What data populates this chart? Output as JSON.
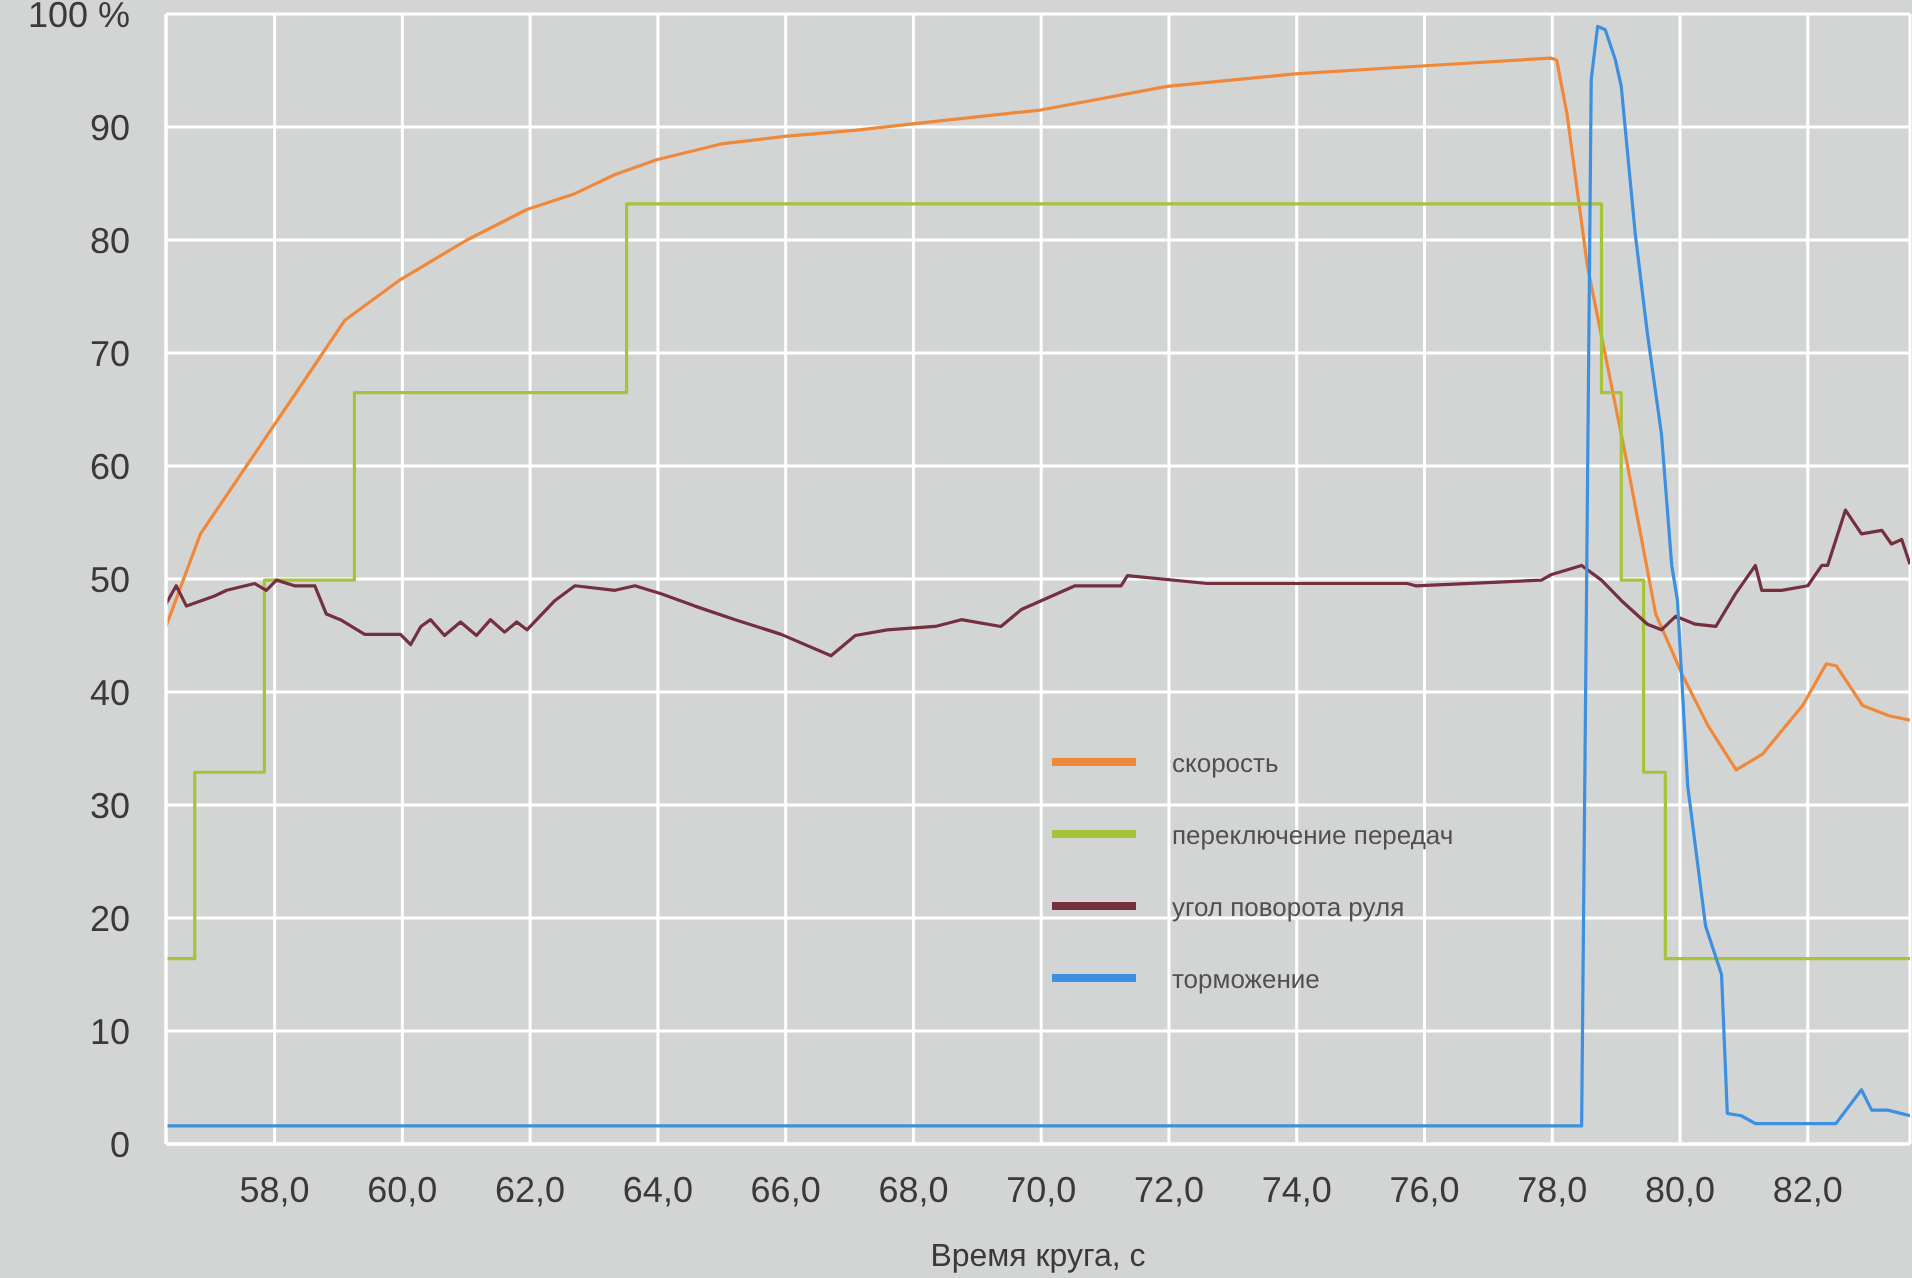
{
  "chart_data": {
    "type": "line",
    "xlabel": "Время круга, с",
    "xlim": [
      56.3,
      83.6
    ],
    "xticks": [
      {
        "value": 58,
        "label": "58,0"
      },
      {
        "value": 60,
        "label": "60,0"
      },
      {
        "value": 62,
        "label": "62,0"
      },
      {
        "value": 64,
        "label": "64,0"
      },
      {
        "value": 66,
        "label": "66,0"
      },
      {
        "value": 68,
        "label": "68,0"
      },
      {
        "value": 70,
        "label": "70,0"
      },
      {
        "value": 72,
        "label": "72,0"
      },
      {
        "value": 74,
        "label": "74,0"
      },
      {
        "value": 76,
        "label": "76,0"
      },
      {
        "value": 78,
        "label": "78,0"
      },
      {
        "value": 80,
        "label": "80,0"
      },
      {
        "value": 82,
        "label": "82,0"
      }
    ],
    "ylim": [
      0,
      100
    ],
    "yticks": [
      0,
      10,
      20,
      30,
      40,
      50,
      60,
      70,
      80,
      90,
      {
        "value": 100,
        "label": "100 %"
      }
    ],
    "grid": true,
    "legend": "bottom right",
    "series": [
      {
        "name": "скорость",
        "color": "#f0883a",
        "x": [
          56.3,
          56.84,
          57.69,
          58.41,
          59.1,
          59.97,
          61.01,
          61.95,
          62.7,
          63.33,
          63.98,
          64.99,
          66.02,
          67.08,
          68.02,
          69.99,
          71.97,
          73.98,
          75.95,
          77.98,
          78.07,
          78.23,
          78.55,
          79.18,
          79.62,
          80.03,
          80.44,
          80.88,
          81.29,
          81.92,
          82.29,
          82.45,
          82.86,
          83.27,
          83.6
        ],
        "values": [
          45.8,
          54.0,
          61.1,
          67.1,
          72.9,
          76.5,
          80.0,
          82.7,
          84.1,
          85.8,
          87.1,
          88.5,
          89.2,
          89.7,
          90.3,
          91.5,
          93.6,
          94.7,
          95.4,
          96.1,
          95.9,
          91.2,
          77.7,
          60.0,
          46.9,
          41.6,
          37.0,
          33.1,
          34.5,
          38.8,
          42.5,
          42.3,
          38.8,
          37.9,
          37.5
        ]
      },
      {
        "name": "переключение передач",
        "color": "#a6c43a",
        "type": "step",
        "x": [
          56.3,
          56.75,
          57.84,
          59.25,
          63.51,
          78.77,
          79.08,
          79.43,
          79.77,
          83.6
        ],
        "values": [
          16.4,
          32.9,
          49.9,
          66.5,
          83.2,
          66.5,
          49.9,
          32.9,
          16.4,
          16.4
        ]
      },
      {
        "name": "угол поворота руля",
        "color": "#74303e",
        "x": [
          56.3,
          56.46,
          56.62,
          57.06,
          57.25,
          57.69,
          57.87,
          58.03,
          58.31,
          58.63,
          58.81,
          59.03,
          59.41,
          59.97,
          60.13,
          60.29,
          60.44,
          60.66,
          60.91,
          61.16,
          61.38,
          61.6,
          61.79,
          61.95,
          62.39,
          62.7,
          63.33,
          63.64,
          64.05,
          64.58,
          65.21,
          65.93,
          66.71,
          67.09,
          67.59,
          68.34,
          68.75,
          69.37,
          69.69,
          70.53,
          71.25,
          71.35,
          72.6,
          74.17,
          75.73,
          75.86,
          77.83,
          77.99,
          78.46,
          78.77,
          79.08,
          79.49,
          79.71,
          79.93,
          80.24,
          80.56,
          80.87,
          81.18,
          81.28,
          81.59,
          82.0,
          82.22,
          82.31,
          82.59,
          82.84,
          83.16,
          83.31,
          83.47,
          83.6
        ],
        "values": [
          47.8,
          49.4,
          47.6,
          48.5,
          49.0,
          49.6,
          49.0,
          49.9,
          49.4,
          49.4,
          46.9,
          46.4,
          45.1,
          45.1,
          44.2,
          45.8,
          46.4,
          45.0,
          46.2,
          45.0,
          46.4,
          45.3,
          46.2,
          45.5,
          48.1,
          49.4,
          49.0,
          49.4,
          48.7,
          47.6,
          46.4,
          45.1,
          43.2,
          45.0,
          45.5,
          45.8,
          46.4,
          45.8,
          47.3,
          49.4,
          49.4,
          50.3,
          49.6,
          49.6,
          49.6,
          49.4,
          49.9,
          50.4,
          51.2,
          49.9,
          48.1,
          46.0,
          45.5,
          46.7,
          46.0,
          45.8,
          48.7,
          51.2,
          49.0,
          49.0,
          49.4,
          51.2,
          51.2,
          56.1,
          54.0,
          54.3,
          53.1,
          53.5,
          51.3
        ]
      },
      {
        "name": "торможение",
        "color": "#3d8fe0",
        "x": [
          56.3,
          78.46,
          78.61,
          78.71,
          78.83,
          78.99,
          79.08,
          79.3,
          79.49,
          79.71,
          79.87,
          79.96,
          80.12,
          80.4,
          80.65,
          80.74,
          80.96,
          81.18,
          82.44,
          82.84,
          83.0,
          83.25,
          83.6
        ],
        "values": [
          1.6,
          1.6,
          94.2,
          98.9,
          98.6,
          95.9,
          93.6,
          80.5,
          71.7,
          62.8,
          51.2,
          48.1,
          31.7,
          19.3,
          15.0,
          2.7,
          2.5,
          1.8,
          1.8,
          4.8,
          3.0,
          3.0,
          2.5
        ]
      }
    ]
  }
}
